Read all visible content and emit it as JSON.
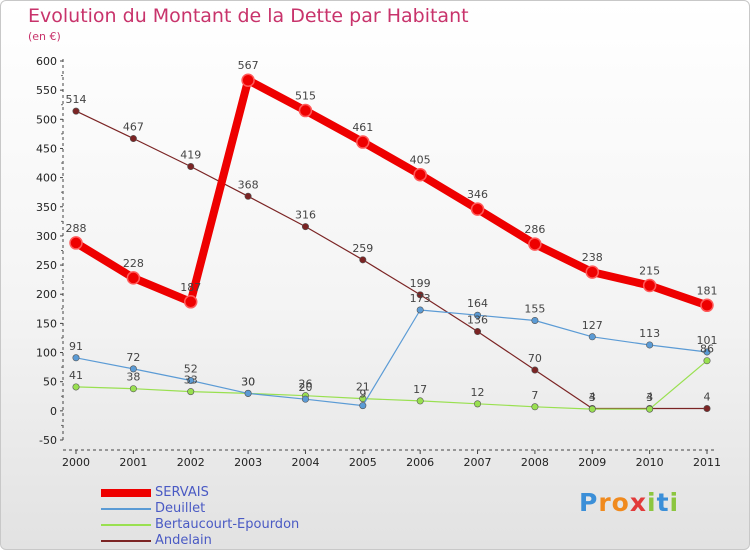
{
  "header": {
    "title": "Evolution du Montant de la Dette par Habitant",
    "unit": "(en €)"
  },
  "logo": {
    "text": "Proxiti",
    "letters": [
      "P",
      "r",
      "o",
      "x",
      "i",
      "t",
      "i"
    ]
  },
  "chart_data": {
    "type": "line",
    "x": [
      "2000",
      "2001",
      "2002",
      "2003",
      "2004",
      "2005",
      "2006",
      "2007",
      "2008",
      "2009",
      "2010",
      "2011"
    ],
    "ylim": [
      -50,
      600
    ],
    "yticks": [
      -50,
      0,
      50,
      100,
      150,
      200,
      250,
      300,
      350,
      400,
      450,
      500,
      550,
      600
    ],
    "grid": false,
    "legend_position": "bottom-left",
    "series": [
      {
        "name": "SERVAIS",
        "color": "#ee0000",
        "values": [
          288,
          228,
          187,
          567,
          515,
          461,
          405,
          346,
          286,
          238,
          215,
          181
        ],
        "labels": [
          "288",
          "228",
          "187",
          "567",
          "515",
          "461",
          "405",
          "346",
          "286",
          "238",
          "215",
          "181"
        ]
      },
      {
        "name": "Deuillet",
        "color": "#5b9bd5",
        "values": [
          91,
          72,
          52,
          30,
          20,
          9,
          173,
          164,
          155,
          127,
          113,
          101
        ],
        "labels": [
          "91",
          "72",
          "52",
          "30",
          "20",
          "9",
          "173",
          "164",
          "155",
          "127",
          "113",
          "101"
        ]
      },
      {
        "name": "Bertaucourt-Epourdon",
        "color": "#99e050",
        "values": [
          41,
          38,
          33,
          30,
          26,
          21,
          17,
          12,
          7,
          3,
          3,
          86
        ],
        "labels": [
          "41",
          "38",
          "33",
          "30",
          "26",
          "21",
          "17",
          "12",
          "7",
          "3",
          "3",
          "86"
        ]
      },
      {
        "name": "Andelain",
        "color": "#7b2424",
        "values": [
          514,
          467,
          419,
          368,
          316,
          259,
          199,
          136,
          70,
          4,
          4,
          4
        ],
        "labels": [
          "514",
          "467",
          "419",
          "368",
          "316",
          "259",
          "199",
          "136",
          "70",
          "4",
          "4",
          "4"
        ]
      }
    ]
  }
}
